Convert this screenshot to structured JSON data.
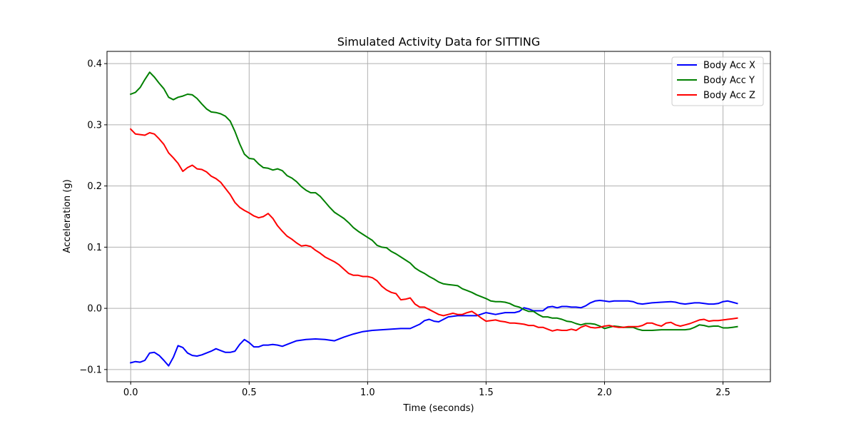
{
  "chart_data": {
    "type": "line",
    "title": "Simulated Activity Data for SITTING",
    "xlabel": "Time (seconds)",
    "ylabel": "Acceleration (g)",
    "xlim": [
      -0.1,
      2.7
    ],
    "ylim": [
      -0.12,
      0.42
    ],
    "xticks": [
      0.0,
      0.5,
      1.0,
      1.5,
      2.0,
      2.5
    ],
    "xtick_labels": [
      "0.0",
      "0.5",
      "1.0",
      "1.5",
      "2.0",
      "2.5"
    ],
    "yticks": [
      -0.1,
      0.0,
      0.1,
      0.2,
      0.3,
      0.4
    ],
    "ytick_labels": [
      "−0.1",
      "0.0",
      "0.1",
      "0.2",
      "0.3",
      "0.4"
    ],
    "grid": true,
    "legend_position": "top-right",
    "series": [
      {
        "name": "Body Acc X",
        "color": "#0000ff",
        "x": [
          0.0,
          0.02,
          0.04,
          0.06,
          0.08,
          0.1,
          0.12,
          0.14,
          0.16,
          0.18,
          0.2,
          0.22,
          0.24,
          0.26,
          0.28,
          0.3,
          0.32,
          0.34,
          0.36,
          0.38,
          0.4,
          0.42,
          0.44,
          0.46,
          0.48,
          0.5,
          0.52,
          0.54,
          0.56,
          0.58,
          0.6,
          0.62,
          0.64,
          0.66,
          0.7,
          0.74,
          0.78,
          0.82,
          0.86,
          0.9,
          0.94,
          0.98,
          1.02,
          1.06,
          1.1,
          1.14,
          1.18,
          1.22,
          1.24,
          1.26,
          1.28,
          1.3,
          1.34,
          1.38,
          1.42,
          1.46,
          1.5,
          1.54,
          1.58,
          1.62,
          1.64,
          1.66,
          1.68,
          1.7,
          1.72,
          1.74,
          1.76,
          1.78,
          1.8,
          1.82,
          1.84,
          1.86,
          1.88,
          1.9,
          1.92,
          1.94,
          1.96,
          1.98,
          2.0,
          2.02,
          2.04,
          2.06,
          2.08,
          2.1,
          2.12,
          2.14,
          2.16,
          2.2,
          2.24,
          2.28,
          2.3,
          2.32,
          2.34,
          2.36,
          2.38,
          2.4,
          2.42,
          2.44,
          2.46,
          2.48,
          2.5,
          2.52,
          2.54,
          2.56
        ],
        "values": [
          -0.089,
          -0.087,
          -0.088,
          -0.085,
          -0.073,
          -0.072,
          -0.077,
          -0.085,
          -0.094,
          -0.08,
          -0.061,
          -0.064,
          -0.073,
          -0.077,
          -0.078,
          -0.076,
          -0.073,
          -0.07,
          -0.066,
          -0.069,
          -0.072,
          -0.072,
          -0.07,
          -0.059,
          -0.051,
          -0.056,
          -0.063,
          -0.063,
          -0.06,
          -0.06,
          -0.059,
          -0.06,
          -0.062,
          -0.059,
          -0.053,
          -0.051,
          -0.05,
          -0.051,
          -0.053,
          -0.047,
          -0.042,
          -0.038,
          -0.036,
          -0.035,
          -0.034,
          -0.033,
          -0.033,
          -0.026,
          -0.02,
          -0.018,
          -0.021,
          -0.022,
          -0.014,
          -0.012,
          -0.012,
          -0.012,
          -0.007,
          -0.01,
          -0.007,
          -0.007,
          -0.005,
          0.001,
          -0.001,
          -0.004,
          -0.004,
          -0.004,
          0.002,
          0.003,
          0.001,
          0.003,
          0.003,
          0.002,
          0.002,
          0.001,
          0.004,
          0.009,
          0.012,
          0.013,
          0.012,
          0.011,
          0.012,
          0.012,
          0.012,
          0.012,
          0.011,
          0.008,
          0.007,
          0.009,
          0.01,
          0.011,
          0.01,
          0.008,
          0.007,
          0.008,
          0.009,
          0.009,
          0.008,
          0.007,
          0.007,
          0.008,
          0.011,
          0.012,
          0.01,
          0.008
        ]
      },
      {
        "name": "Body Acc Y",
        "color": "#008000",
        "x": [
          0.0,
          0.02,
          0.04,
          0.06,
          0.08,
          0.1,
          0.12,
          0.14,
          0.16,
          0.18,
          0.2,
          0.22,
          0.24,
          0.26,
          0.28,
          0.3,
          0.32,
          0.34,
          0.36,
          0.38,
          0.4,
          0.42,
          0.44,
          0.46,
          0.48,
          0.5,
          0.52,
          0.54,
          0.56,
          0.58,
          0.6,
          0.62,
          0.64,
          0.66,
          0.68,
          0.7,
          0.72,
          0.74,
          0.76,
          0.78,
          0.8,
          0.82,
          0.84,
          0.86,
          0.88,
          0.9,
          0.92,
          0.94,
          0.96,
          0.98,
          1.0,
          1.02,
          1.04,
          1.06,
          1.08,
          1.1,
          1.12,
          1.14,
          1.16,
          1.18,
          1.2,
          1.22,
          1.24,
          1.26,
          1.28,
          1.3,
          1.32,
          1.34,
          1.36,
          1.38,
          1.4,
          1.42,
          1.44,
          1.46,
          1.48,
          1.5,
          1.52,
          1.54,
          1.56,
          1.58,
          1.6,
          1.62,
          1.64,
          1.66,
          1.68,
          1.7,
          1.72,
          1.74,
          1.76,
          1.78,
          1.8,
          1.82,
          1.84,
          1.86,
          1.88,
          1.9,
          1.92,
          1.94,
          1.96,
          1.98,
          2.0,
          2.02,
          2.04,
          2.06,
          2.08,
          2.1,
          2.12,
          2.14,
          2.16,
          2.2,
          2.24,
          2.28,
          2.3,
          2.32,
          2.34,
          2.36,
          2.38,
          2.4,
          2.42,
          2.44,
          2.46,
          2.48,
          2.5,
          2.52,
          2.54,
          2.56
        ],
        "values": [
          0.35,
          0.353,
          0.361,
          0.374,
          0.386,
          0.378,
          0.368,
          0.359,
          0.345,
          0.341,
          0.345,
          0.347,
          0.35,
          0.349,
          0.343,
          0.334,
          0.326,
          0.321,
          0.32,
          0.318,
          0.314,
          0.306,
          0.289,
          0.269,
          0.252,
          0.245,
          0.244,
          0.236,
          0.23,
          0.229,
          0.226,
          0.228,
          0.225,
          0.217,
          0.213,
          0.207,
          0.199,
          0.193,
          0.189,
          0.189,
          0.183,
          0.174,
          0.165,
          0.157,
          0.152,
          0.147,
          0.14,
          0.132,
          0.126,
          0.121,
          0.116,
          0.111,
          0.103,
          0.1,
          0.099,
          0.093,
          0.089,
          0.084,
          0.079,
          0.074,
          0.066,
          0.061,
          0.057,
          0.052,
          0.048,
          0.043,
          0.04,
          0.039,
          0.038,
          0.037,
          0.032,
          0.029,
          0.026,
          0.022,
          0.019,
          0.016,
          0.012,
          0.011,
          0.011,
          0.01,
          0.008,
          0.004,
          0.002,
          -0.002,
          -0.005,
          -0.005,
          -0.01,
          -0.014,
          -0.014,
          -0.016,
          -0.016,
          -0.018,
          -0.021,
          -0.022,
          -0.025,
          -0.027,
          -0.025,
          -0.025,
          -0.026,
          -0.029,
          -0.033,
          -0.031,
          -0.029,
          -0.03,
          -0.031,
          -0.031,
          -0.031,
          -0.034,
          -0.036,
          -0.036,
          -0.035,
          -0.035,
          -0.035,
          -0.035,
          -0.035,
          -0.034,
          -0.031,
          -0.027,
          -0.028,
          -0.03,
          -0.029,
          -0.029,
          -0.032,
          -0.032,
          -0.031,
          -0.03
        ]
      },
      {
        "name": "Body Acc Z",
        "color": "#ff0000",
        "x": [
          0.0,
          0.02,
          0.04,
          0.06,
          0.08,
          0.1,
          0.12,
          0.14,
          0.16,
          0.18,
          0.2,
          0.22,
          0.24,
          0.26,
          0.28,
          0.3,
          0.32,
          0.34,
          0.36,
          0.38,
          0.4,
          0.42,
          0.44,
          0.46,
          0.48,
          0.5,
          0.52,
          0.54,
          0.56,
          0.58,
          0.6,
          0.62,
          0.64,
          0.66,
          0.68,
          0.7,
          0.72,
          0.74,
          0.76,
          0.78,
          0.8,
          0.82,
          0.84,
          0.86,
          0.88,
          0.9,
          0.92,
          0.94,
          0.96,
          0.98,
          1.0,
          1.02,
          1.04,
          1.06,
          1.08,
          1.1,
          1.12,
          1.14,
          1.16,
          1.18,
          1.2,
          1.22,
          1.24,
          1.26,
          1.28,
          1.3,
          1.32,
          1.34,
          1.36,
          1.38,
          1.4,
          1.42,
          1.44,
          1.46,
          1.48,
          1.5,
          1.52,
          1.54,
          1.56,
          1.58,
          1.6,
          1.62,
          1.64,
          1.66,
          1.68,
          1.7,
          1.72,
          1.74,
          1.76,
          1.78,
          1.8,
          1.82,
          1.84,
          1.86,
          1.88,
          1.9,
          1.92,
          1.94,
          1.96,
          1.98,
          2.0,
          2.02,
          2.04,
          2.06,
          2.08,
          2.1,
          2.12,
          2.14,
          2.16,
          2.18,
          2.2,
          2.22,
          2.24,
          2.26,
          2.28,
          2.3,
          2.32,
          2.34,
          2.36,
          2.38,
          2.4,
          2.42,
          2.44,
          2.46,
          2.48,
          2.5,
          2.52,
          2.54,
          2.56
        ],
        "values": [
          0.293,
          0.285,
          0.284,
          0.283,
          0.287,
          0.285,
          0.277,
          0.268,
          0.254,
          0.246,
          0.237,
          0.224,
          0.23,
          0.234,
          0.228,
          0.227,
          0.223,
          0.216,
          0.212,
          0.206,
          0.196,
          0.186,
          0.173,
          0.165,
          0.16,
          0.156,
          0.151,
          0.148,
          0.15,
          0.155,
          0.147,
          0.135,
          0.126,
          0.118,
          0.113,
          0.107,
          0.102,
          0.103,
          0.101,
          0.095,
          0.09,
          0.084,
          0.08,
          0.076,
          0.071,
          0.064,
          0.057,
          0.054,
          0.054,
          0.052,
          0.052,
          0.05,
          0.045,
          0.036,
          0.03,
          0.026,
          0.024,
          0.014,
          0.015,
          0.017,
          0.007,
          0.002,
          0.002,
          -0.002,
          -0.006,
          -0.01,
          -0.012,
          -0.01,
          -0.008,
          -0.01,
          -0.01,
          -0.007,
          -0.005,
          -0.01,
          -0.016,
          -0.021,
          -0.02,
          -0.019,
          -0.021,
          -0.022,
          -0.024,
          -0.024,
          -0.025,
          -0.026,
          -0.028,
          -0.028,
          -0.031,
          -0.031,
          -0.034,
          -0.037,
          -0.035,
          -0.036,
          -0.036,
          -0.034,
          -0.036,
          -0.031,
          -0.028,
          -0.031,
          -0.032,
          -0.031,
          -0.029,
          -0.028,
          -0.03,
          -0.031,
          -0.031,
          -0.03,
          -0.03,
          -0.03,
          -0.028,
          -0.024,
          -0.024,
          -0.027,
          -0.029,
          -0.024,
          -0.023,
          -0.027,
          -0.029,
          -0.027,
          -0.025,
          -0.022,
          -0.019,
          -0.018,
          -0.021,
          -0.02,
          -0.02,
          -0.019,
          -0.018,
          -0.017,
          -0.016
        ]
      }
    ]
  }
}
